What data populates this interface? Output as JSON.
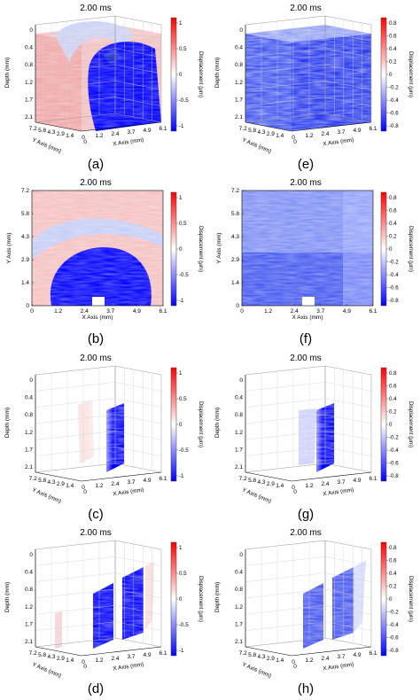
{
  "figure": {
    "time_label": "2.00 ms",
    "colorbar_label": "Displacement (μm)",
    "colors": {
      "blue": "#0000ff",
      "white": "#ffffff",
      "red": "#ff0000"
    }
  },
  "axes": {
    "x_label": "X Axis (mm)",
    "y_label": "Y Axis (mm)",
    "z_label": "Depth (mm)",
    "x_ticks": [
      "0",
      "1.2",
      "2.4",
      "3.7",
      "4.9",
      "6.1"
    ],
    "y_ticks": [
      "1.4",
      "2.9",
      "4.3",
      "5.8",
      "7.2"
    ],
    "y_ticks_2d": [
      "0",
      "1.4",
      "2.9",
      "4.3",
      "5.8",
      "7.2"
    ],
    "z_ticks": [
      "0",
      "0.4",
      "0.8",
      "1.2",
      "1.7",
      "2.1"
    ],
    "origin_tick": "0"
  },
  "colorbars": {
    "left": [
      "1",
      "0.5",
      "0",
      "-0.5",
      "-1"
    ],
    "right": [
      "0.8",
      "0.6",
      "0.4",
      "0.2",
      "0",
      "-0.2",
      "-0.4",
      "-0.6",
      "-0.8"
    ]
  },
  "panels": [
    {
      "label": "(a)",
      "kind": "cube",
      "content": "volume-lesion",
      "scale": "left"
    },
    {
      "label": "(e)",
      "kind": "cube",
      "content": "volume-noise",
      "scale": "right"
    },
    {
      "label": "(b)",
      "kind": "plane",
      "content": "slice-lesion",
      "scale": "left"
    },
    {
      "label": "(f)",
      "kind": "plane",
      "content": "slice-noise",
      "scale": "right"
    },
    {
      "label": "(c)",
      "kind": "cube",
      "content": "one-plane",
      "scale": "left"
    },
    {
      "label": "(g)",
      "kind": "cube",
      "content": "one-plane-noise",
      "scale": "right"
    },
    {
      "label": "(d)",
      "kind": "cube",
      "content": "two-planes",
      "scale": "left"
    },
    {
      "label": "(h)",
      "kind": "cube",
      "content": "two-planes-noise",
      "scale": "right"
    }
  ]
}
